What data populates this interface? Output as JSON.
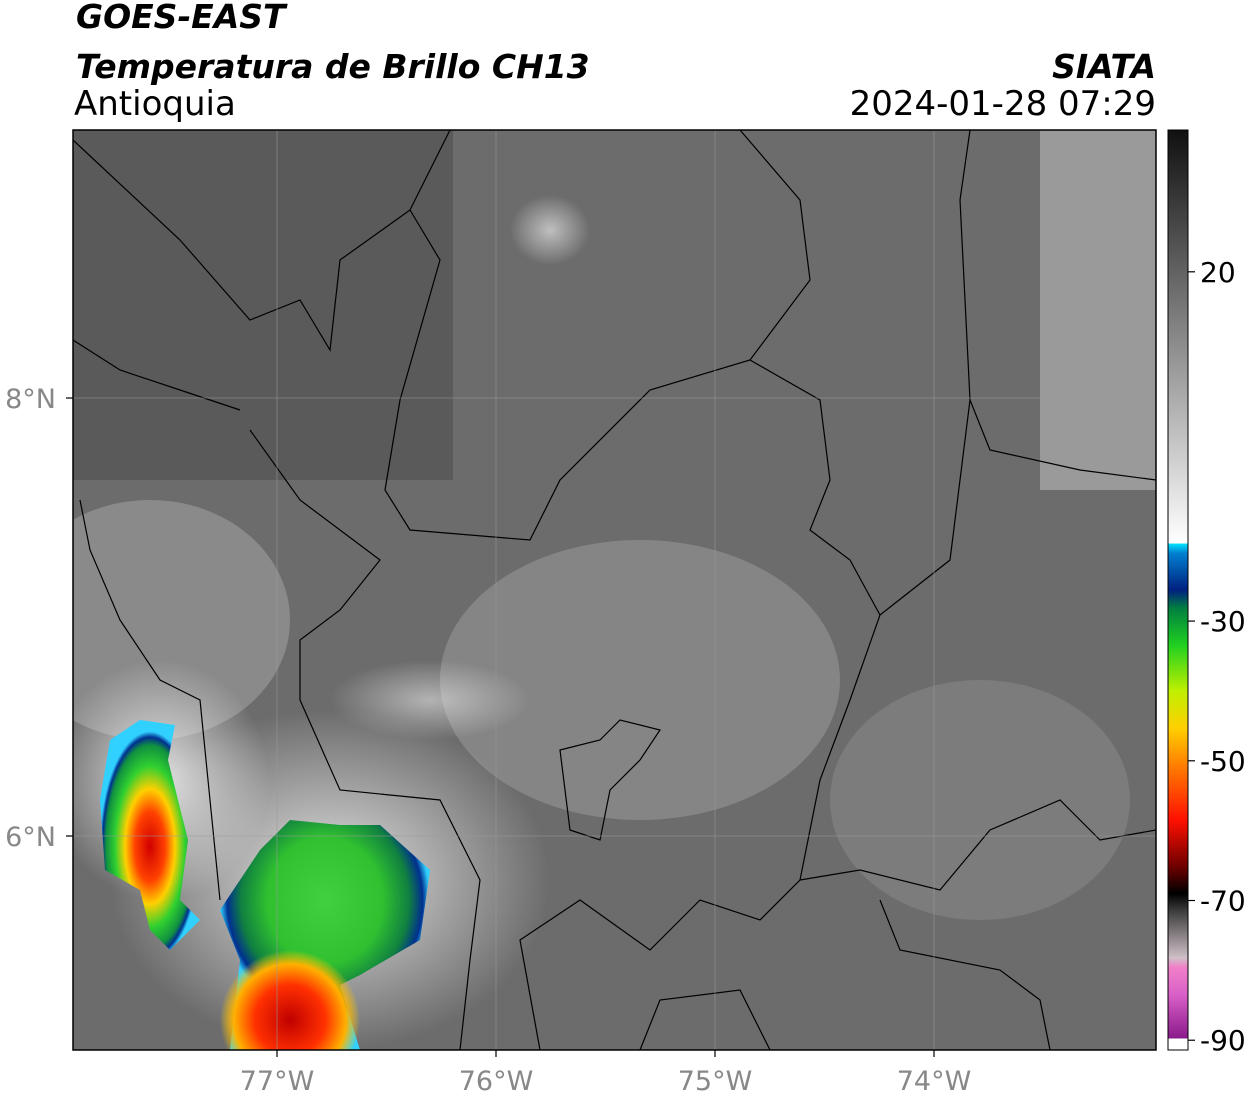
{
  "header": {
    "title": "GOES-EAST",
    "subtitle": "Temperatura de Brillo CH13",
    "region": "Antioquia",
    "source": "SIATA",
    "datetime": "2024-01-28 07:29"
  },
  "map": {
    "lat_labels": [
      "8°N",
      "6°N"
    ],
    "lon_labels": [
      "77°W",
      "76°W",
      "75°W",
      "74°W"
    ]
  },
  "colorbar": {
    "range": [
      -91.4,
      40.3
    ],
    "ticks": [
      20,
      -30,
      -50,
      -70,
      -90
    ]
  }
}
